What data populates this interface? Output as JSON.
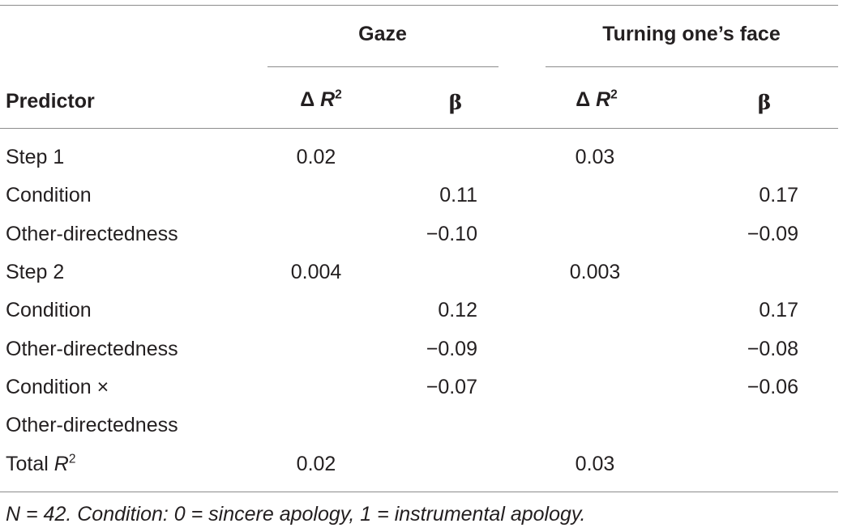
{
  "table": {
    "group_headers": {
      "gaze": "Gaze",
      "turning": "Turning one’s face"
    },
    "column_headers": {
      "predictor": "Predictor",
      "delta_prefix": "Δ",
      "r_letter": "R",
      "r_sup": "2",
      "beta": "β"
    },
    "rows": [
      {
        "label": "Step 1",
        "gaze_dr2": "0.02",
        "gaze_beta": "",
        "turn_dr2": "0.03",
        "turn_beta": ""
      },
      {
        "label": "Condition",
        "gaze_dr2": "",
        "gaze_beta": "0.11",
        "turn_dr2": "",
        "turn_beta": "0.17"
      },
      {
        "label": "Other-directedness",
        "gaze_dr2": "",
        "gaze_beta": "−0.10",
        "turn_dr2": "",
        "turn_beta": "−0.09"
      },
      {
        "label": "Step 2",
        "gaze_dr2": "0.004",
        "gaze_beta": "",
        "turn_dr2": "0.003",
        "turn_beta": ""
      },
      {
        "label": "Condition",
        "gaze_dr2": "",
        "gaze_beta": "0.12",
        "turn_dr2": "",
        "turn_beta": "0.17"
      },
      {
        "label": "Other-directedness",
        "gaze_dr2": "",
        "gaze_beta": "−0.09",
        "turn_dr2": "",
        "turn_beta": "−0.08"
      },
      {
        "label": "Condition ×",
        "gaze_dr2": "",
        "gaze_beta": "−0.07",
        "turn_dr2": "",
        "turn_beta": "−0.06"
      },
      {
        "label": "Other-directedness",
        "gaze_dr2": "",
        "gaze_beta": "",
        "turn_dr2": "",
        "turn_beta": ""
      }
    ],
    "total_row": {
      "label_prefix": "Total",
      "r_letter": "R",
      "r_sup": "2",
      "gaze_dr2": "0.02",
      "turn_dr2": "0.03"
    },
    "note": "N = 42. Condition: 0 = sincere apology, 1 = instrumental apology."
  }
}
